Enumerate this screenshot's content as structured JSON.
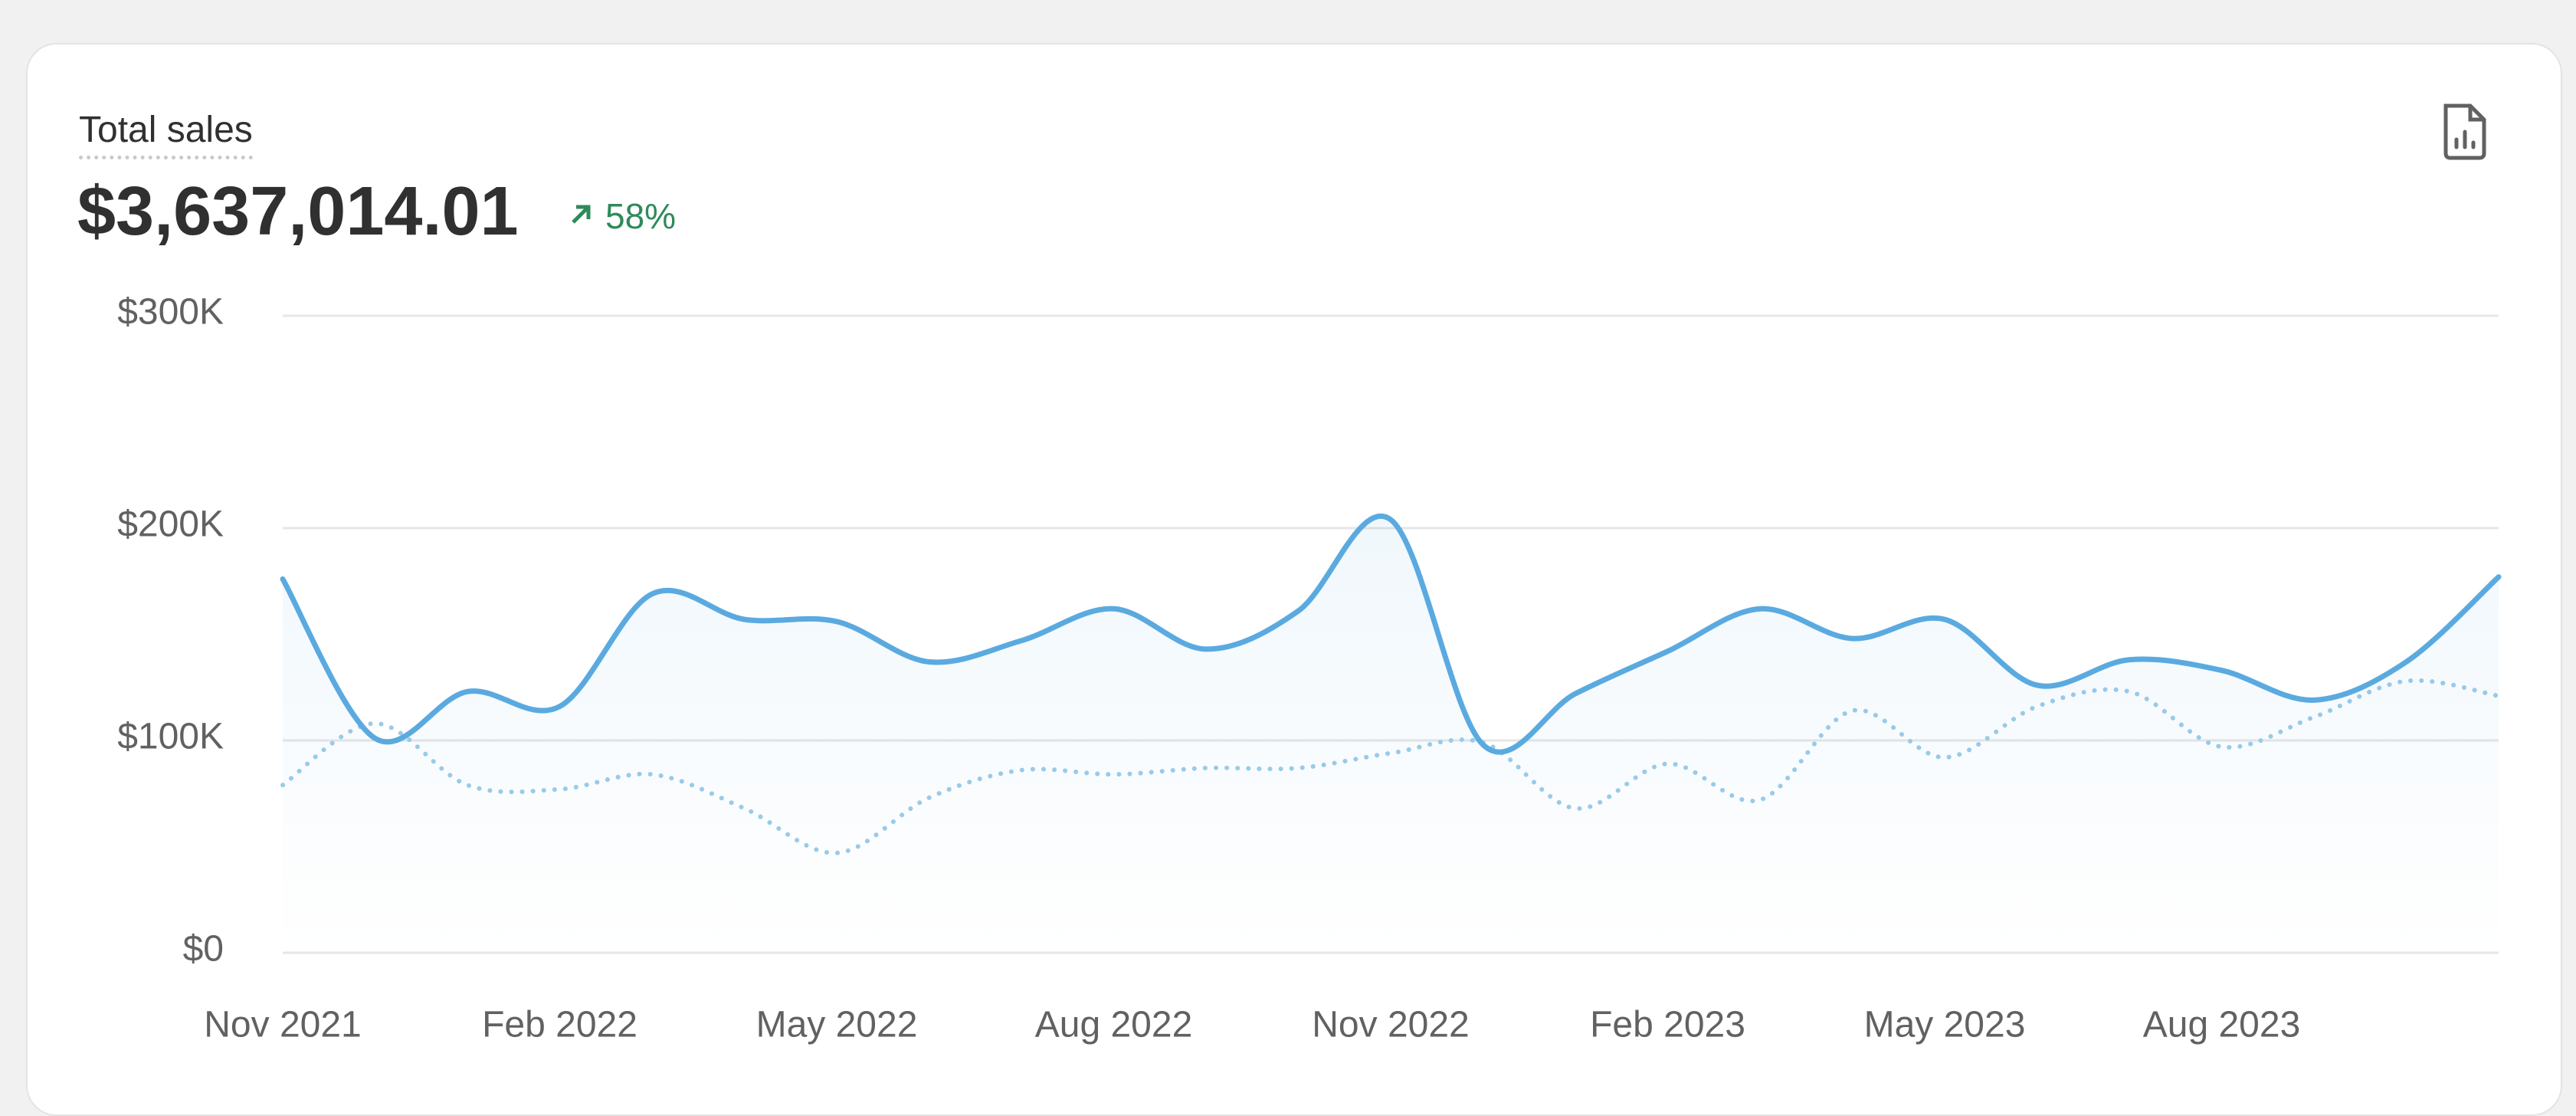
{
  "header": {
    "title": "Total sales",
    "total": "$3,637,014.01",
    "change": "58%"
  },
  "chart_data": {
    "type": "line",
    "categories": [
      "Nov 2021",
      null,
      null,
      "Feb 2022",
      null,
      null,
      "May 2022",
      null,
      null,
      "Aug 2022",
      null,
      null,
      "Nov 2022",
      null,
      null,
      "Feb 2023",
      null,
      null,
      "May 2023",
      null,
      null,
      "Aug 2023",
      null,
      null,
      null
    ],
    "series": [
      {
        "color": "#5aaae0",
        "style": "solid",
        "values": [
          176000,
          101000,
          123000,
          116000,
          169000,
          157000,
          156000,
          137000,
          147000,
          162000,
          143000,
          161000,
          204000,
          98000,
          122000,
          142000,
          162000,
          148000,
          157000,
          126000,
          138000,
          133000,
          119000,
          137000,
          177000
        ]
      },
      {
        "color": "#9ccbe8",
        "style": "dotted",
        "values": [
          79000,
          108000,
          79000,
          77000,
          84000,
          68000,
          47000,
          73000,
          86000,
          84000,
          87000,
          87000,
          94000,
          99000,
          68000,
          89000,
          72000,
          114000,
          92000,
          116000,
          123000,
          97000,
          111000,
          128000,
          121000
        ]
      }
    ],
    "ylim": [
      0,
      300000
    ],
    "yticks": [
      {
        "value": 0,
        "label": "$0"
      },
      {
        "value": 100000,
        "label": "$100K"
      },
      {
        "value": 200000,
        "label": "$200K"
      },
      {
        "value": 300000,
        "label": "$300K"
      }
    ],
    "grid": true
  }
}
